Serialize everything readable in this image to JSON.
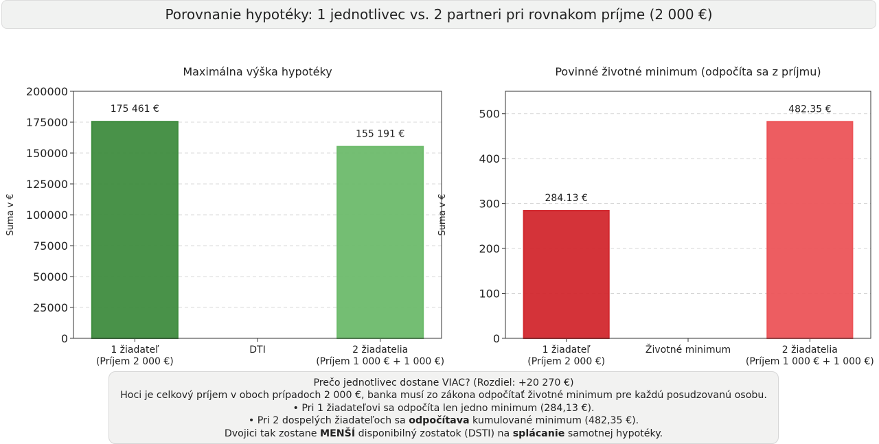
{
  "header": {
    "title": "Porovnanie hypotéky: 1 jednotlivec vs. 2 partneri pri rovnakom príjme (2 000 €)"
  },
  "chart_data": [
    {
      "type": "bar",
      "title": "Maximálna výška hypotéky",
      "ylabel": "Suma v €",
      "categories": [
        "1 žiadateľ\n(Príjem 2 000 €)",
        "DTI",
        "2 žiadatelia\n(Príjem 1 000 € + 1 000 €)"
      ],
      "values": [
        175461,
        null,
        155191
      ],
      "value_labels": [
        "175 461 €",
        null,
        "155 191 €"
      ],
      "colors": [
        "#3f8c3f",
        null,
        "#6dbb6b"
      ],
      "ylim": [
        0,
        200000
      ],
      "yticks": [
        0,
        25000,
        50000,
        75000,
        100000,
        125000,
        150000,
        175000,
        200000
      ],
      "grid": true
    },
    {
      "type": "bar",
      "title": "Povinné životné minimum (odpočíta sa z príjmu)",
      "ylabel": "Suma v €",
      "categories": [
        "1 žiadateľ\n(Príjem 2 000 €)",
        "Životné minimum",
        "2 žiadatelia\n(Príjem 1 000 € + 1 000 €)"
      ],
      "values": [
        284.13,
        null,
        482.35
      ],
      "value_labels": [
        "284.13 €",
        null,
        "482.35 €"
      ],
      "colors": [
        "#d2282e",
        null,
        "#ec5458"
      ],
      "ylim": [
        0,
        550
      ],
      "yticks": [
        0,
        100,
        200,
        300,
        400,
        500
      ],
      "grid": true
    }
  ],
  "note": {
    "lines": [
      [
        {
          "text": "Prečo jednotlivec dostane VIAC? (Rozdiel: +20 270 €)"
        }
      ],
      [
        {
          "text": "Hoci je celkový príjem v oboch prípadoch 2 000 €, banka musí zo zákona odpočítať životné minimum pre každú posudzovanú osobu."
        }
      ],
      [
        {
          "text": "• Pri 1 žiadateľovi sa odpočíta len jedno minimum (284,13 €)."
        }
      ],
      [
        {
          "text": "• Pri 2 dospelých žiadateľoch sa "
        },
        {
          "text": "odpočítava",
          "bold": true
        },
        {
          "text": " kumulované minimum (482,35 €)."
        }
      ],
      [
        {
          "text": "Dvojici tak zostane "
        },
        {
          "text": "MENŠÍ",
          "bold": true
        },
        {
          "text": " disponibilný zostatok (DSTI) na "
        },
        {
          "text": "splácanie",
          "bold": true
        },
        {
          "text": " samotnej hypotéky."
        }
      ]
    ]
  }
}
